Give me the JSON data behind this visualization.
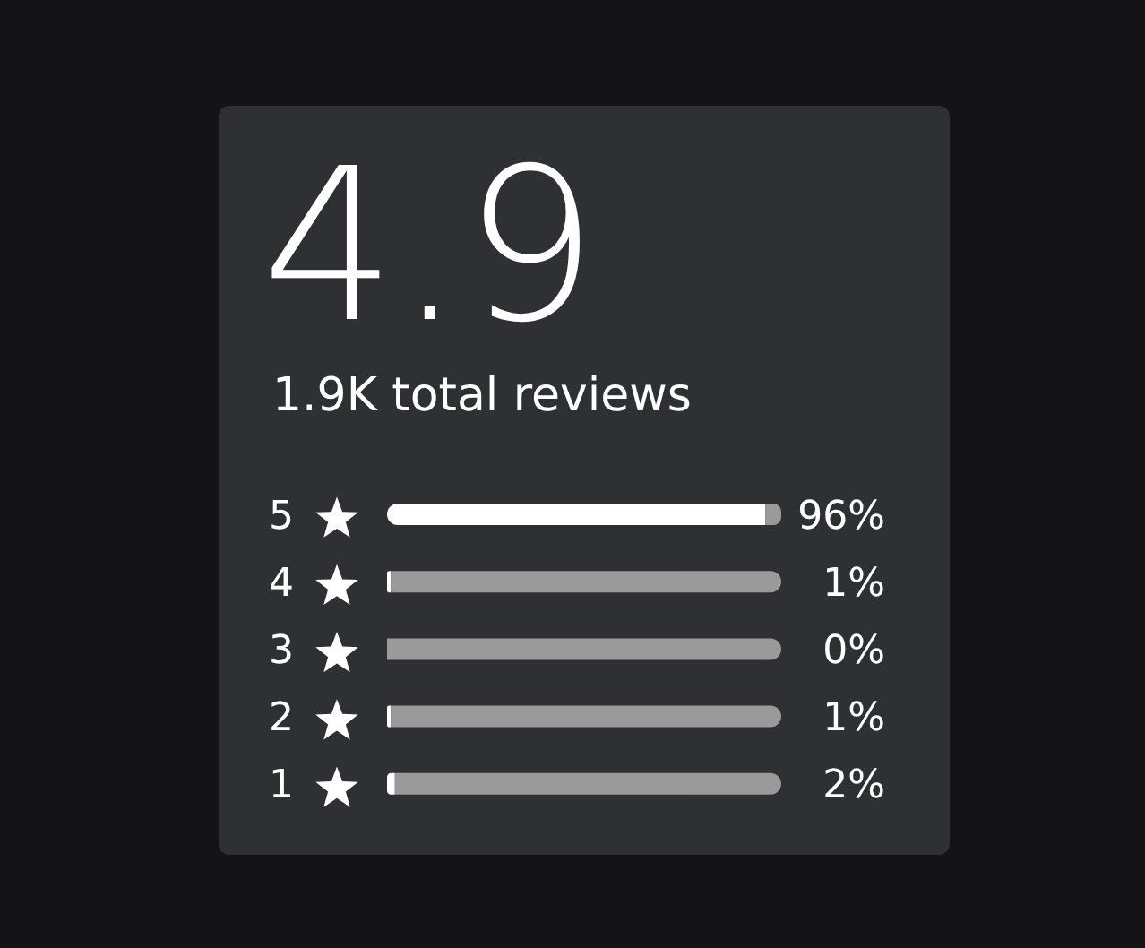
{
  "chart_data": {
    "type": "bar",
    "orientation": "horizontal",
    "stacked": true,
    "title": "4.9",
    "subtitle": "1.9K total reviews",
    "categories": [
      "5",
      "4",
      "3",
      "2",
      "1"
    ],
    "series": [
      {
        "color": "#ffffff",
        "values": [
          96,
          1,
          0,
          1,
          2
        ],
        "value_labels": [
          "96%",
          "1%",
          "0%",
          "1%",
          "2%"
        ]
      },
      {
        "color": "#9a9a9a",
        "values": [
          4,
          99,
          100,
          99,
          98
        ]
      }
    ],
    "xlim": [
      0,
      100
    ],
    "tick_labels": "y"
  }
}
